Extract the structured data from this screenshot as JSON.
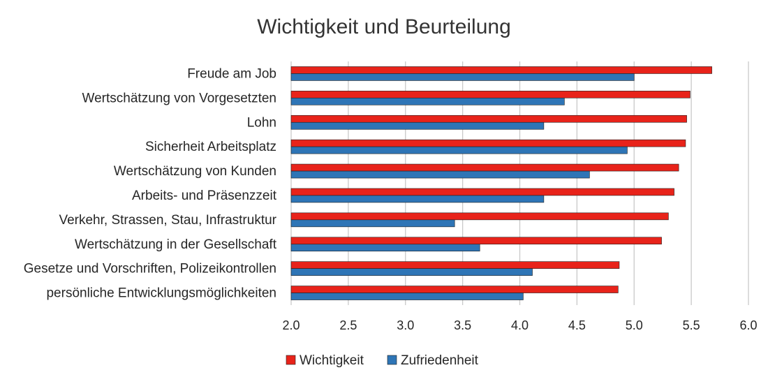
{
  "chart_data": {
    "type": "bar",
    "orientation": "horizontal",
    "title": "Wichtigkeit und Beurteilung",
    "xlabel": "",
    "ylabel": "",
    "xlim": [
      2.0,
      6.0
    ],
    "xticks": [
      "2.0",
      "2.5",
      "3.0",
      "3.5",
      "4.0",
      "4.5",
      "5.0",
      "5.5",
      "6.0"
    ],
    "grid": true,
    "legend_position": "bottom",
    "categories": [
      "Freude am Job",
      "Wertschätzung von Vorgesetzten",
      "Lohn",
      "Sicherheit Arbeitsplatz",
      "Wertschätzung von Kunden",
      "Arbeits- und Präsenzzeit",
      "Verkehr, Strassen, Stau, Infrastruktur",
      "Wertschätzung in der Gesellschaft",
      "Gesetze und Vorschriften, Polizeikontrollen",
      "persönliche Entwicklungsmöglichkeiten"
    ],
    "series": [
      {
        "name": "Wichtigkeit",
        "color": "#e8231a",
        "values": [
          5.68,
          5.49,
          5.46,
          5.45,
          5.39,
          5.35,
          5.3,
          5.24,
          4.87,
          4.86
        ]
      },
      {
        "name": "Zufriedenheit",
        "color": "#2e75b6",
        "values": [
          5.0,
          4.39,
          4.21,
          4.94,
          4.61,
          4.21,
          3.43,
          3.65,
          4.11,
          4.03
        ]
      }
    ]
  }
}
